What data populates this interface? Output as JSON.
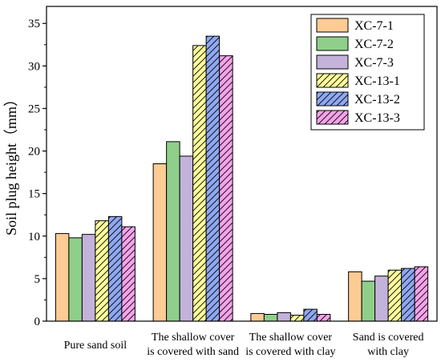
{
  "chart_data": {
    "type": "bar",
    "title": "",
    "xlabel": "",
    "ylabel": "Soil plug height（mm）",
    "ylim": [
      0,
      37
    ],
    "yticks": [
      0,
      5,
      10,
      15,
      20,
      25,
      30,
      35
    ],
    "categories": [
      [
        "Pure sand soil"
      ],
      [
        "The shallow cover",
        "is covered with sand"
      ],
      [
        "The shallow cover",
        "is covered with clay"
      ],
      [
        "Sand is covered",
        "with clay"
      ]
    ],
    "legend_position": "top-right",
    "series": [
      {
        "name": "XC-7-1",
        "color": "#FDCB94",
        "hatch": false,
        "values": [
          10.3,
          18.5,
          0.9,
          5.8
        ]
      },
      {
        "name": "XC-7-2",
        "color": "#8FCF8A",
        "hatch": false,
        "values": [
          9.8,
          21.1,
          0.8,
          4.7
        ]
      },
      {
        "name": "XC-7-3",
        "color": "#C3B2D9",
        "hatch": false,
        "values": [
          10.2,
          19.4,
          1.0,
          5.3
        ]
      },
      {
        "name": "XC-13-1",
        "color": "#FFFF9C",
        "hatch": true,
        "values": [
          11.8,
          32.4,
          0.7,
          6.0
        ]
      },
      {
        "name": "XC-13-2",
        "color": "#8FA8F2",
        "hatch": true,
        "values": [
          12.3,
          33.5,
          1.4,
          6.2
        ]
      },
      {
        "name": "XC-13-3",
        "color": "#F5A3EA",
        "hatch": true,
        "values": [
          11.1,
          31.2,
          0.8,
          6.4
        ]
      }
    ]
  }
}
